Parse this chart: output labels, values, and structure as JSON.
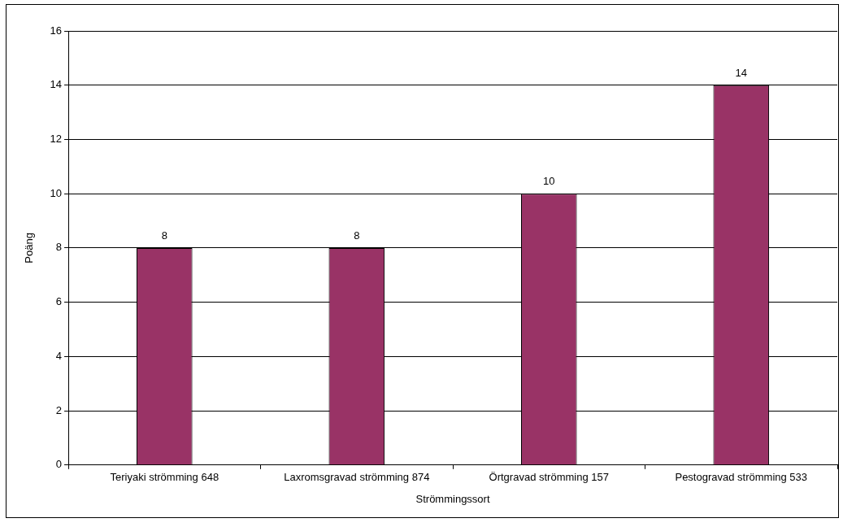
{
  "chart_data": {
    "type": "bar",
    "xlabel": "Strömmingssort",
    "ylabel": "Poäng",
    "categories": [
      "Teriyaki strömming 648",
      "Laxromsgravad strömming 874",
      "Örtgravad strömming 157",
      "Pestogravad strömming 533"
    ],
    "values": [
      8,
      8,
      10,
      14
    ],
    "color": "#993366",
    "ylim": [
      0,
      16
    ],
    "yticks": [
      0,
      2,
      4,
      6,
      8,
      10,
      12,
      14,
      16
    ],
    "grid": "y",
    "data_labels": true,
    "legend": false
  }
}
